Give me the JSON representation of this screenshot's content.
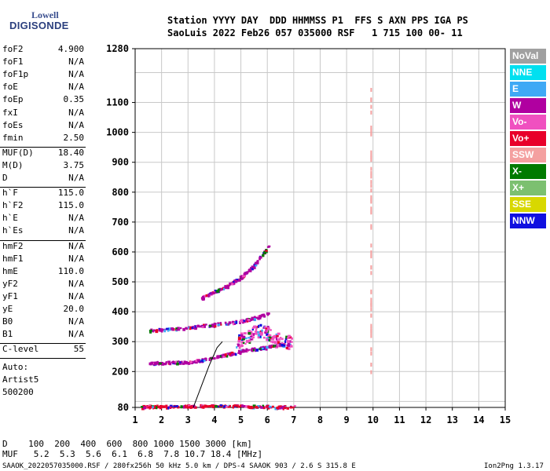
{
  "logo": {
    "line1": "Lowell",
    "line2": "DIGISONDE"
  },
  "header": {
    "line1": "Station YYYY DAY  DDD HHMMSS P1  FFS S AXN PPS IGA PS",
    "line2": "SaoLuis 2022 Feb26 057 035000 RSF   1 715 100 00- 11"
  },
  "params_a": [
    {
      "name": "foF2",
      "value": "4.900"
    },
    {
      "name": "foF1",
      "value": "N/A"
    },
    {
      "name": "foF1p",
      "value": "N/A"
    },
    {
      "name": "foE",
      "value": "N/A"
    },
    {
      "name": "foEp",
      "value": "0.35"
    },
    {
      "name": "fxI",
      "value": "N/A"
    },
    {
      "name": "foEs",
      "value": "N/A"
    },
    {
      "name": "fmin",
      "value": "2.50"
    }
  ],
  "params_b": [
    {
      "name": "MUF(D)",
      "value": "18.40"
    },
    {
      "name": "M(D)",
      "value": "3.75"
    },
    {
      "name": "D",
      "value": "N/A"
    }
  ],
  "params_c": [
    {
      "name": "h`F",
      "value": "115.0"
    },
    {
      "name": "h`F2",
      "value": "115.0"
    },
    {
      "name": "h`E",
      "value": "N/A"
    },
    {
      "name": "h`Es",
      "value": "N/A"
    }
  ],
  "params_d": [
    {
      "name": "hmF2",
      "value": "N/A"
    },
    {
      "name": "hmF1",
      "value": "N/A"
    },
    {
      "name": "hmE",
      "value": "110.0"
    },
    {
      "name": "yF2",
      "value": "N/A"
    },
    {
      "name": "yF1",
      "value": "N/A"
    },
    {
      "name": "yE",
      "value": "20.0"
    },
    {
      "name": "B0",
      "value": "N/A"
    },
    {
      "name": "B1",
      "value": "N/A"
    }
  ],
  "clevel": {
    "name": "C-level",
    "value": "55"
  },
  "autoscaler": [
    "Auto:",
    "Artist5",
    "500200"
  ],
  "legend": [
    {
      "label": "NoVal",
      "color": "#a0a0a0"
    },
    {
      "label": "NNE",
      "color": "#00e0f0"
    },
    {
      "label": "E",
      "color": "#3fa9f5"
    },
    {
      "label": "W",
      "color": "#b000a0"
    },
    {
      "label": "Vo-",
      "color": "#f050c0"
    },
    {
      "label": "Vo+",
      "color": "#e8002a"
    },
    {
      "label": "SSW",
      "color": "#f4a0a0"
    },
    {
      "label": "X-",
      "color": "#007a00"
    },
    {
      "label": "X+",
      "color": "#7cc070"
    },
    {
      "label": "SSE",
      "color": "#d8d800"
    },
    {
      "label": "NNW",
      "color": "#1010e0"
    }
  ],
  "footer": {
    "row1": "D    100  200  400  600  800 1000 1500 3000 [km]",
    "row2": "MUF   5.2  5.3  5.6  6.1  6.8  7.8 10.7 18.4 [MHz]",
    "info": "SAAOK_2022057035000.RSF / 280fx256h 50 kHz 5.0 km / DPS-4 SAAOK 903 / 2.6 S 315.8 E",
    "version": "Ion2Png 1.3.17"
  },
  "chart_data": {
    "type": "scatter",
    "x_ticks": [
      "1",
      "2",
      "3",
      "4",
      "5",
      "6",
      "7",
      "8",
      "9",
      "10",
      "11",
      "12",
      "13",
      "14",
      "15"
    ],
    "y_ticks": [
      "80",
      "200",
      "300",
      "400",
      "500",
      "600",
      "700",
      "800",
      "900",
      "1000",
      "1100",
      "1280"
    ],
    "xlim": [
      1,
      15
    ],
    "ylim": [
      80,
      1280
    ],
    "x_grid": [
      1,
      2,
      3,
      4,
      5,
      6,
      7,
      8,
      9,
      10,
      11,
      12,
      13,
      14,
      15
    ],
    "y_grid": [
      100,
      200,
      300,
      400,
      500,
      600,
      700,
      800,
      900,
      1000,
      1100,
      1200
    ],
    "muf_curve": [
      [
        3.2,
        80
      ],
      [
        3.5,
        150
      ],
      [
        3.8,
        220
      ],
      [
        4.1,
        280
      ],
      [
        4.3,
        300
      ]
    ],
    "traces": [
      {
        "name": "E-layer echo",
        "color": "#e8002a",
        "points": [
          [
            1.2,
            85
          ],
          [
            2,
            86
          ],
          [
            3,
            87
          ],
          [
            4,
            88
          ],
          [
            5,
            86
          ],
          [
            6,
            85
          ],
          [
            7,
            84
          ]
        ]
      },
      {
        "name": "F-layer trace",
        "color": "#b000a0",
        "points": [
          [
            1.5,
            230
          ],
          [
            2,
            232
          ],
          [
            3,
            235
          ],
          [
            3.8,
            245
          ],
          [
            4.5,
            260
          ],
          [
            5.2,
            275
          ],
          [
            6,
            285
          ],
          [
            6.8,
            295
          ]
        ]
      },
      {
        "name": "F-layer 2nd hop",
        "color": "#b000a0",
        "points": [
          [
            1.5,
            340
          ],
          [
            2.5,
            345
          ],
          [
            3.5,
            355
          ],
          [
            4.5,
            365
          ],
          [
            5.2,
            375
          ],
          [
            6,
            395
          ]
        ]
      },
      {
        "name": "F-layer 3rd hop",
        "color": "#b000a0",
        "points": [
          [
            3.5,
            450
          ],
          [
            4,
            470
          ],
          [
            4.5,
            490
          ],
          [
            5,
            520
          ],
          [
            5.5,
            560
          ],
          [
            6,
            620
          ]
        ]
      },
      {
        "name": "Spread F",
        "color": "#f050c0",
        "points": [
          [
            4.8,
            300
          ],
          [
            5.2,
            320
          ],
          [
            5.6,
            340
          ],
          [
            6,
            330
          ],
          [
            6.4,
            310
          ],
          [
            6.9,
            300
          ]
        ]
      },
      {
        "name": "Interference",
        "color": "#f4a0a0",
        "points": [
          [
            9.9,
            1150
          ],
          [
            9.9,
            900
          ],
          [
            9.9,
            700
          ],
          [
            9.9,
            400
          ],
          [
            9.9,
            200
          ]
        ]
      }
    ]
  }
}
